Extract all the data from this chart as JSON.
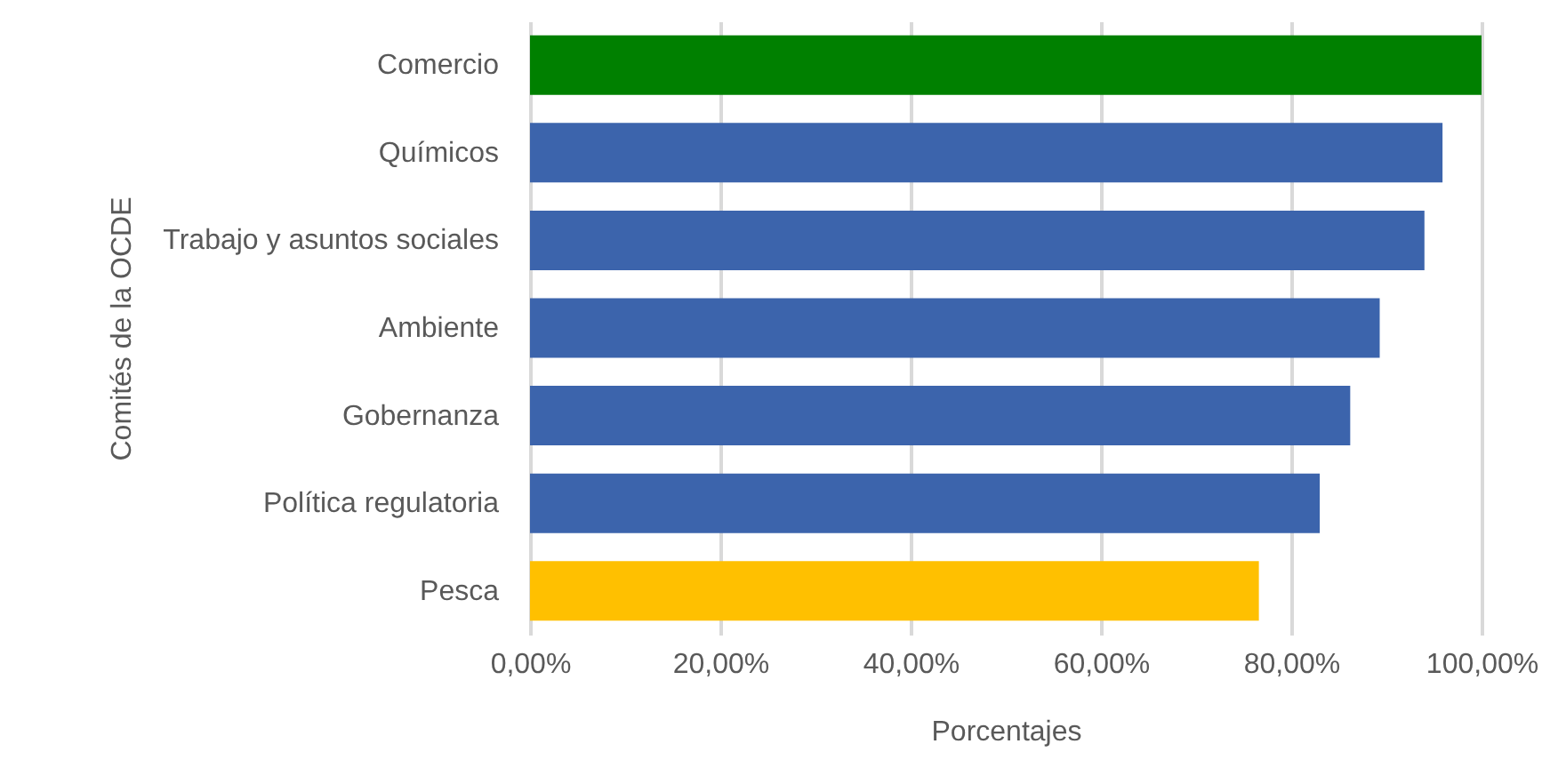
{
  "chart_data": {
    "type": "bar",
    "orientation": "horizontal",
    "xlabel": "Porcentajes",
    "ylabel": "Comités de la OCDE",
    "categories": [
      "Comercio",
      "Químicos",
      "Trabajo y asuntos sociales",
      "Ambiente",
      "Gobernanza",
      "Política regulatoria",
      "Pesca"
    ],
    "values": [
      100,
      95.9,
      94,
      89.3,
      86.2,
      83,
      76.6
    ],
    "colors": [
      "#008000",
      "#3c64ac",
      "#3c64ac",
      "#3c64ac",
      "#3c64ac",
      "#3c64ac",
      "#ffc000"
    ],
    "xlim": [
      0,
      100
    ],
    "xticks": [
      {
        "value": 0,
        "label": "0,00%"
      },
      {
        "value": 20,
        "label": "20,00%"
      },
      {
        "value": 40,
        "label": "40,00%"
      },
      {
        "value": 60,
        "label": "60,00%"
      },
      {
        "value": 80,
        "label": "80,00%"
      },
      {
        "value": 100,
        "label": "100,00%"
      }
    ],
    "grid": "x"
  }
}
